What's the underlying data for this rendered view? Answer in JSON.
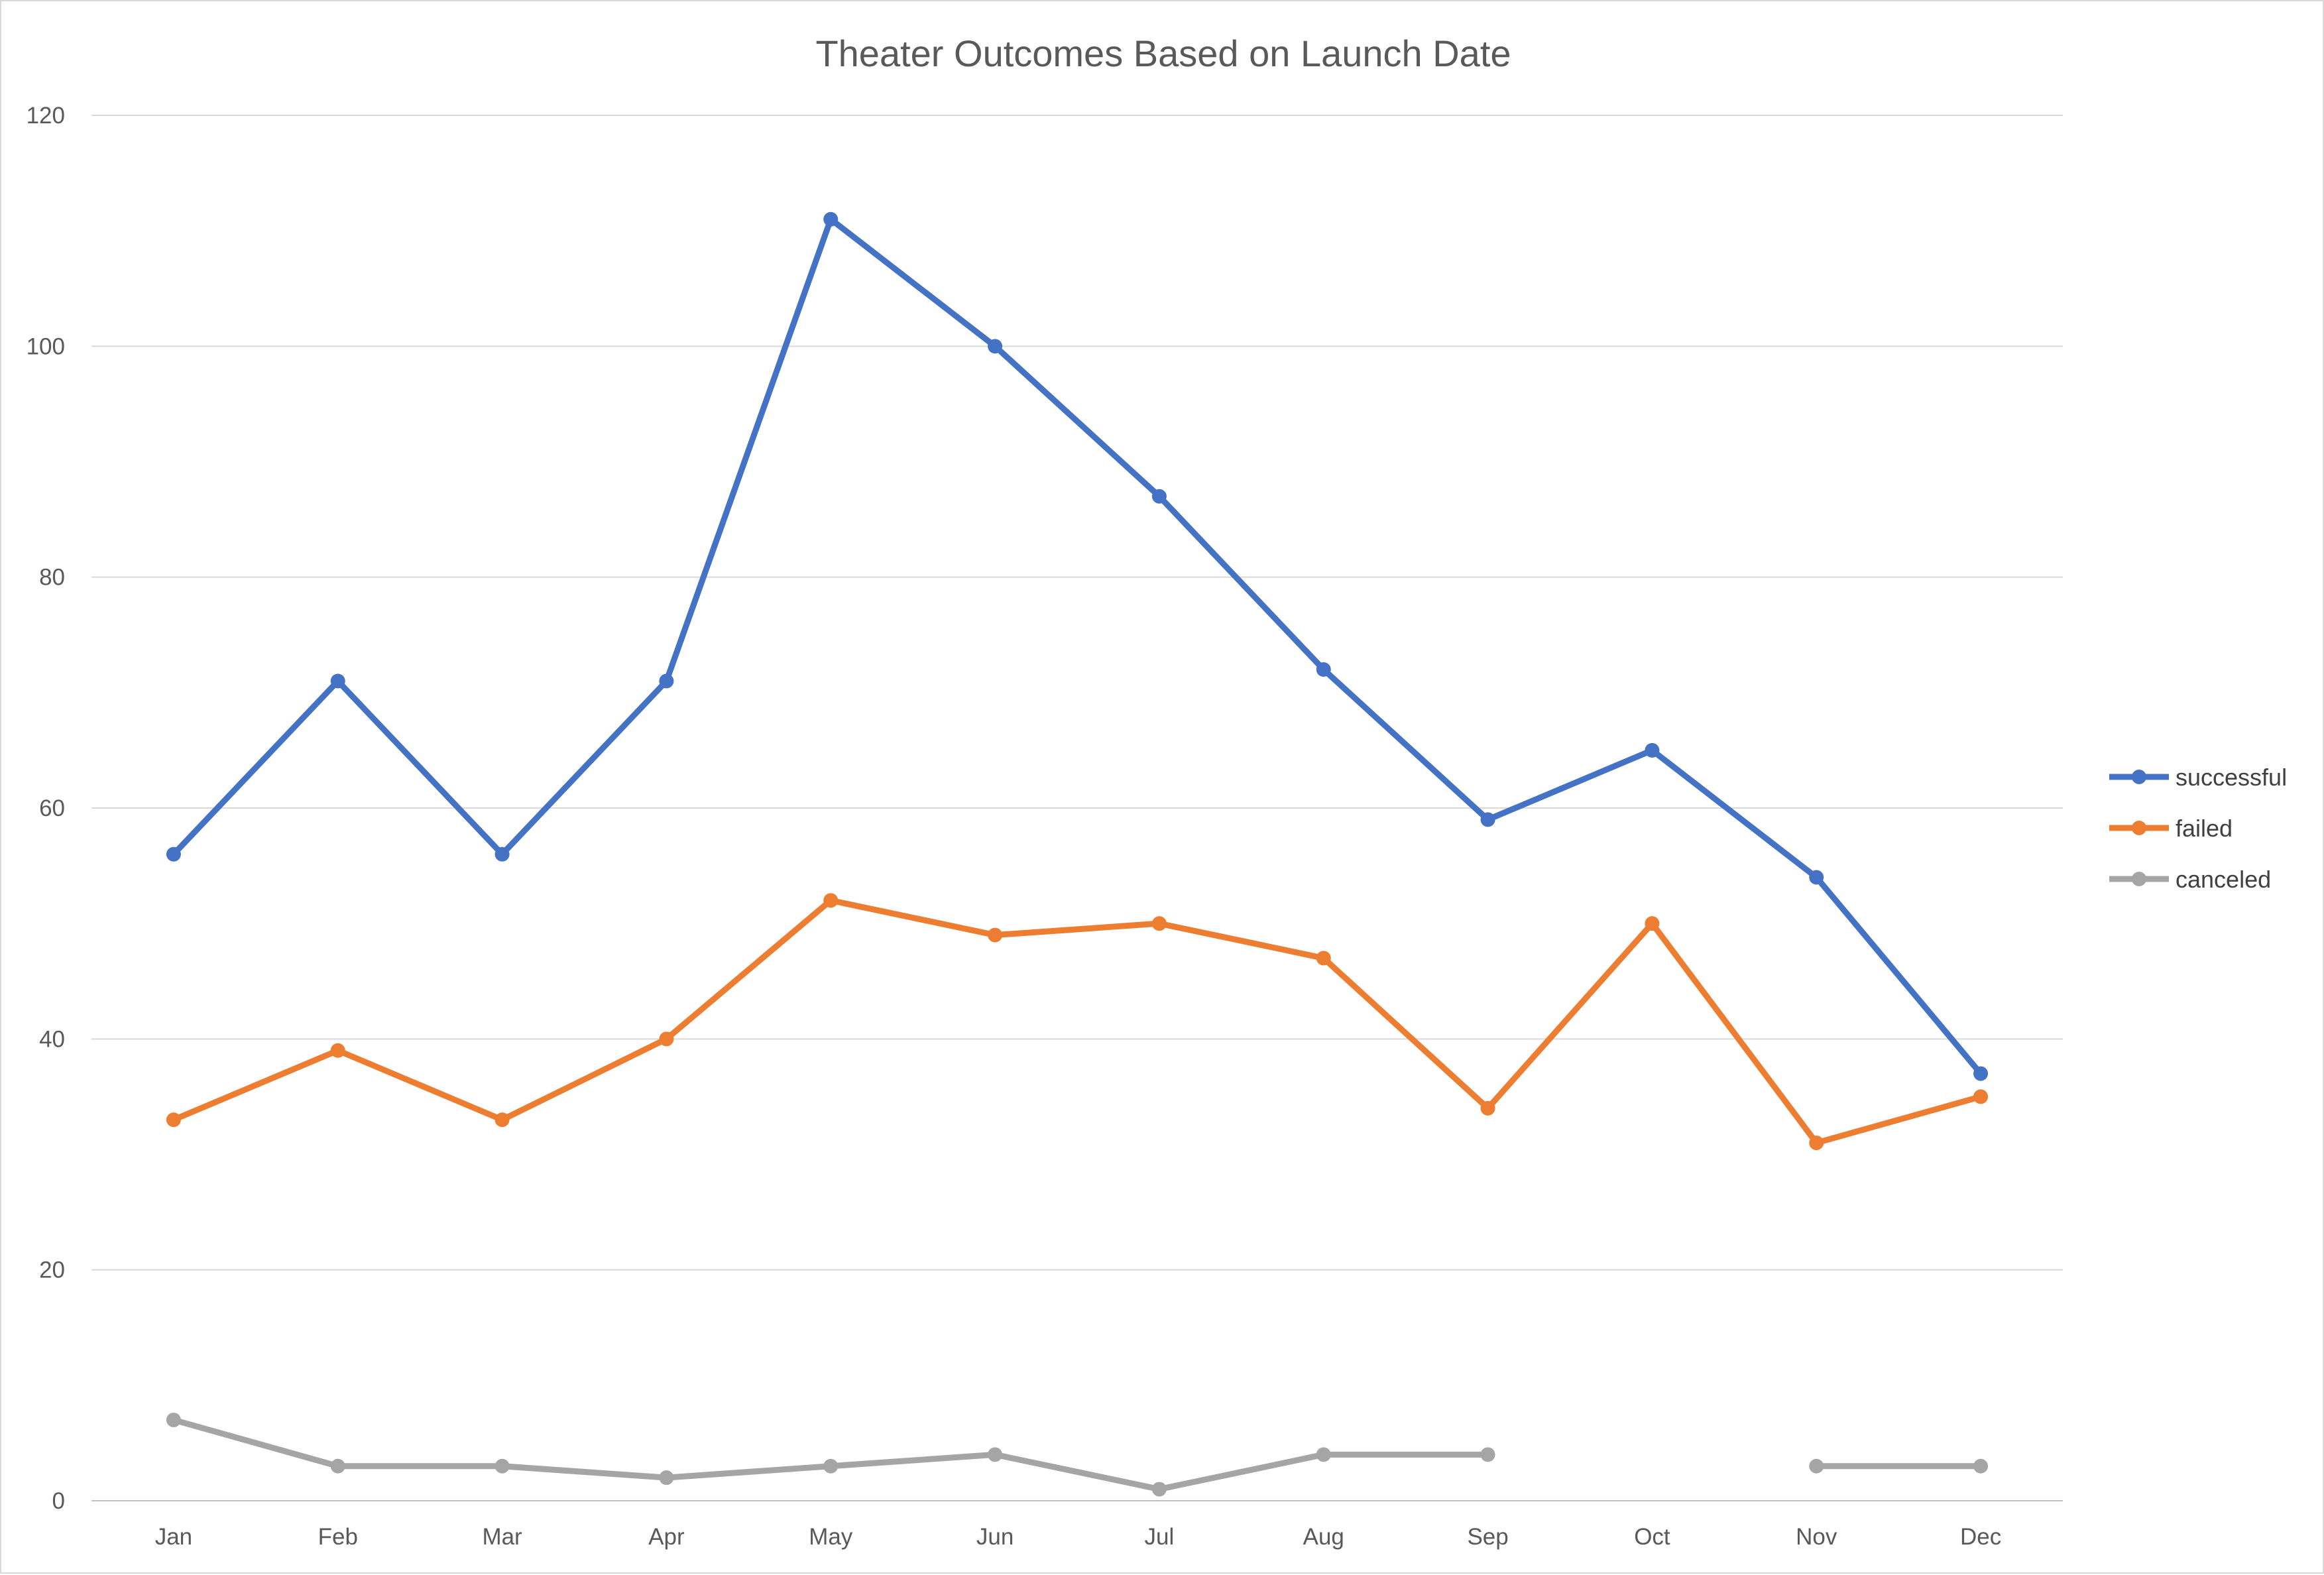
{
  "chart_data": {
    "type": "line",
    "title": "Theater Outcomes Based on Launch Date",
    "xlabel": "",
    "ylabel": "",
    "categories": [
      "Jan",
      "Feb",
      "Mar",
      "Apr",
      "May",
      "Jun",
      "Jul",
      "Aug",
      "Sep",
      "Oct",
      "Nov",
      "Dec"
    ],
    "ylim": [
      0,
      120
    ],
    "yticks": [
      0,
      20,
      40,
      60,
      80,
      100,
      120
    ],
    "grid": true,
    "legend_position": "right",
    "series": [
      {
        "name": "successful",
        "color": "#4472C4",
        "values": [
          56,
          71,
          56,
          71,
          111,
          100,
          87,
          72,
          59,
          65,
          54,
          37
        ]
      },
      {
        "name": "failed",
        "color": "#ED7D31",
        "values": [
          33,
          39,
          33,
          40,
          52,
          49,
          50,
          47,
          34,
          50,
          31,
          35
        ]
      },
      {
        "name": "canceled",
        "color": "#A5A5A5",
        "values": [
          7,
          3,
          3,
          2,
          3,
          4,
          1,
          4,
          4,
          null,
          3,
          3
        ]
      }
    ]
  }
}
